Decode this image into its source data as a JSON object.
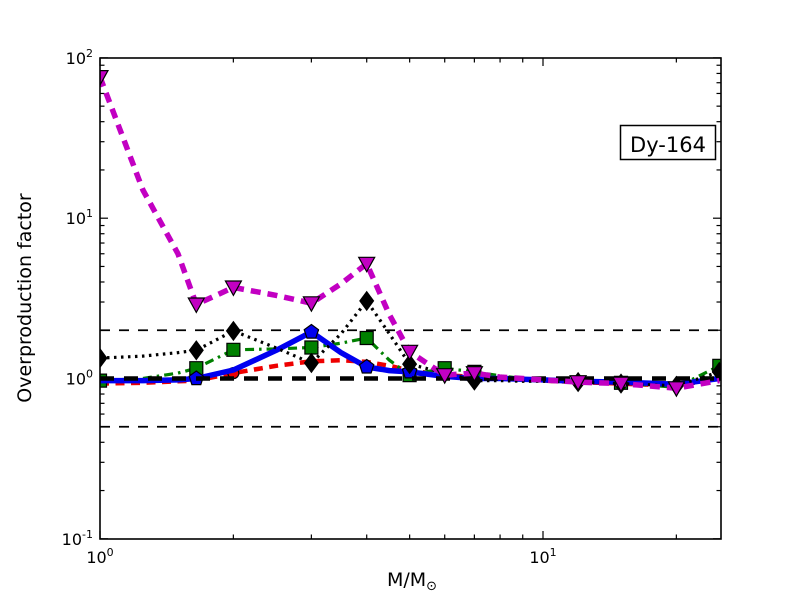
{
  "chart_data": {
    "type": "line",
    "title": "",
    "annotation": "Dy-164",
    "xlabel_main": "M/M",
    "xlabel_sub": "⊙",
    "ylabel": "Overproduction factor",
    "xscale": "log",
    "yscale": "log",
    "xlim": [
      1,
      25.2
    ],
    "ylim": [
      0.1,
      100
    ],
    "grid": false,
    "legend": "none",
    "x_ticks": [
      {
        "value": 1,
        "base": "10",
        "exp": "0"
      },
      {
        "value": 10,
        "base": "10",
        "exp": "1"
      }
    ],
    "y_ticks": [
      {
        "value": 100,
        "base": "10",
        "exp": "2"
      },
      {
        "value": 10,
        "base": "10",
        "exp": "1"
      },
      {
        "value": 1,
        "base": "10",
        "exp": "0"
      },
      {
        "value": 0.1,
        "base": "10",
        "exp": "-1"
      }
    ],
    "reference_lines": [
      {
        "y": 2.0,
        "style": "thin-dashed",
        "color": "#000000"
      },
      {
        "y": 0.5,
        "style": "thin-dashed",
        "color": "#000000"
      },
      {
        "y": 1.0,
        "style": "thick-dashed",
        "color": "#000000"
      }
    ],
    "series": [
      {
        "name": "red-thick-dashed-circles",
        "color": "#EE0000",
        "line_style": "dashed",
        "layer": 1,
        "marker": {
          "shape": "circle",
          "size": 5.5,
          "fill": "#EE0000",
          "edge": "#000000"
        },
        "marker_at": [
          2
        ],
        "points": [
          [
            1,
            0.93
          ],
          [
            1.25,
            0.94
          ],
          [
            1.5,
            0.96
          ],
          [
            1.65,
            0.97
          ],
          [
            2,
            1.08
          ],
          [
            2.5,
            1.2
          ],
          [
            3,
            1.28
          ],
          [
            3.5,
            1.3
          ],
          [
            4,
            1.27
          ],
          [
            4.5,
            1.2
          ],
          [
            5,
            1.12
          ],
          [
            6,
            1.05
          ],
          [
            7,
            1.02
          ],
          [
            8,
            1.0
          ],
          [
            9,
            0.99
          ],
          [
            10,
            0.97
          ],
          [
            12,
            0.95
          ],
          [
            15,
            0.93
          ],
          [
            20,
            0.9
          ],
          [
            25,
            1.0
          ]
        ]
      },
      {
        "name": "green-dashdot-squares",
        "color": "#008000",
        "line_style": "dash-dot",
        "layer": 1,
        "marker": {
          "shape": "square",
          "size": 6.5,
          "fill": "#008000",
          "edge": "#000000"
        },
        "marker_at": [
          1,
          1.65,
          2,
          3,
          4,
          5,
          6,
          7,
          15,
          25
        ],
        "points": [
          [
            1,
            0.97
          ],
          [
            1.25,
            1.0
          ],
          [
            1.5,
            1.08
          ],
          [
            1.65,
            1.16
          ],
          [
            2,
            1.51
          ],
          [
            2.5,
            1.53
          ],
          [
            3,
            1.56
          ],
          [
            3.5,
            1.66
          ],
          [
            4,
            1.79
          ],
          [
            4.5,
            1.3
          ],
          [
            5,
            1.05
          ],
          [
            6,
            1.16
          ],
          [
            7,
            1.1
          ],
          [
            8,
            1.04
          ],
          [
            9,
            1.0
          ],
          [
            10,
            0.99
          ],
          [
            12,
            0.96
          ],
          [
            15,
            0.94
          ],
          [
            20,
            0.88
          ],
          [
            25,
            1.2
          ]
        ]
      },
      {
        "name": "blue-thick-solid-pentagons",
        "color": "#0000F0",
        "line_style": "solid",
        "layer": 1,
        "marker": {
          "shape": "pentagon",
          "size": 7.5,
          "fill": "#0000F0",
          "edge": "#000000"
        },
        "marker_at": [
          1.65,
          3,
          4,
          5
        ],
        "points": [
          [
            1,
            0.97
          ],
          [
            1.25,
            0.97
          ],
          [
            1.5,
            0.98
          ],
          [
            1.65,
            1.0
          ],
          [
            2,
            1.13
          ],
          [
            2.5,
            1.5
          ],
          [
            3,
            1.95
          ],
          [
            3.5,
            1.45
          ],
          [
            4,
            1.18
          ],
          [
            4.5,
            1.12
          ],
          [
            5,
            1.1
          ],
          [
            6,
            1.03
          ],
          [
            7,
            1.0
          ],
          [
            8,
            1.0
          ],
          [
            9,
            0.99
          ],
          [
            10,
            0.98
          ],
          [
            12,
            0.96
          ],
          [
            15,
            0.95
          ],
          [
            20,
            0.92
          ],
          [
            25,
            1.0
          ]
        ]
      },
      {
        "name": "black-dotted-diamonds",
        "color": "#000000",
        "line_style": "dotted",
        "layer": 2,
        "marker": {
          "shape": "diamond",
          "size": 8,
          "fill": "#000000",
          "edge": "#000000"
        },
        "marker_at": [
          1,
          1.65,
          2,
          3,
          4,
          5,
          7,
          12,
          15,
          20,
          25
        ],
        "points": [
          [
            1,
            1.34
          ],
          [
            1.25,
            1.38
          ],
          [
            1.5,
            1.45
          ],
          [
            1.65,
            1.5
          ],
          [
            2,
            1.98
          ],
          [
            2.5,
            1.55
          ],
          [
            3,
            1.25
          ],
          [
            3.5,
            1.9
          ],
          [
            4,
            3.05
          ],
          [
            4.5,
            1.9
          ],
          [
            5,
            1.23
          ],
          [
            6,
            1.08
          ],
          [
            7,
            0.97
          ],
          [
            8,
            0.97
          ],
          [
            9,
            0.96
          ],
          [
            10,
            0.96
          ],
          [
            12,
            0.95
          ],
          [
            15,
            0.93
          ],
          [
            20,
            0.9
          ],
          [
            25,
            1.1
          ]
        ]
      },
      {
        "name": "magenta-thick-dashed-triangles",
        "color": "#C200C2",
        "line_style": "thick-dashed",
        "layer": 2,
        "marker": {
          "shape": "triangle-down",
          "size": 8,
          "fill": "#C200C2",
          "edge": "#000000"
        },
        "marker_at": [
          1,
          1.65,
          2,
          3,
          4,
          5,
          6,
          7,
          12,
          15,
          20
        ],
        "points": [
          [
            1,
            76
          ],
          [
            1.25,
            15
          ],
          [
            1.5,
            6.0
          ],
          [
            1.65,
            2.9
          ],
          [
            2,
            3.7
          ],
          [
            2.5,
            3.3
          ],
          [
            3,
            2.95
          ],
          [
            3.5,
            3.9
          ],
          [
            4,
            5.2
          ],
          [
            4.5,
            2.5
          ],
          [
            5,
            1.47
          ],
          [
            6,
            1.05
          ],
          [
            7,
            1.08
          ],
          [
            8,
            1.02
          ],
          [
            9,
            1.0
          ],
          [
            10,
            0.98
          ],
          [
            12,
            0.95
          ],
          [
            15,
            0.93
          ],
          [
            20,
            0.87
          ],
          [
            25,
            0.97
          ]
        ]
      }
    ]
  }
}
